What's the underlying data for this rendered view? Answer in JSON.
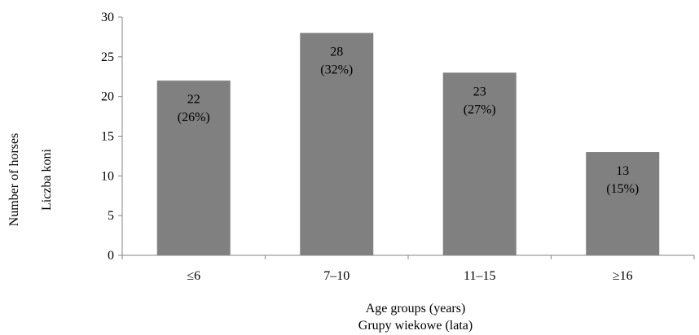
{
  "chart_data": {
    "type": "bar",
    "categories": [
      "≤6",
      "7–10",
      "11–15",
      "≥16"
    ],
    "values": [
      22,
      28,
      23,
      13
    ],
    "percent_labels": [
      "(26%)",
      "(32%)",
      "(27%)",
      "(15%)"
    ],
    "ylim": [
      0,
      30
    ],
    "y_ticks": [
      0,
      5,
      10,
      15,
      20,
      25,
      30
    ],
    "ylabel_lines": [
      "Number of horses",
      "Liczba koni"
    ],
    "xlabel_lines": [
      "Age groups (years)",
      "Grupy wiekowe (lata)"
    ],
    "grid": false,
    "legend": "none",
    "bar_color": "#808080",
    "axis_color": "#868686",
    "text_color": "#000000"
  }
}
